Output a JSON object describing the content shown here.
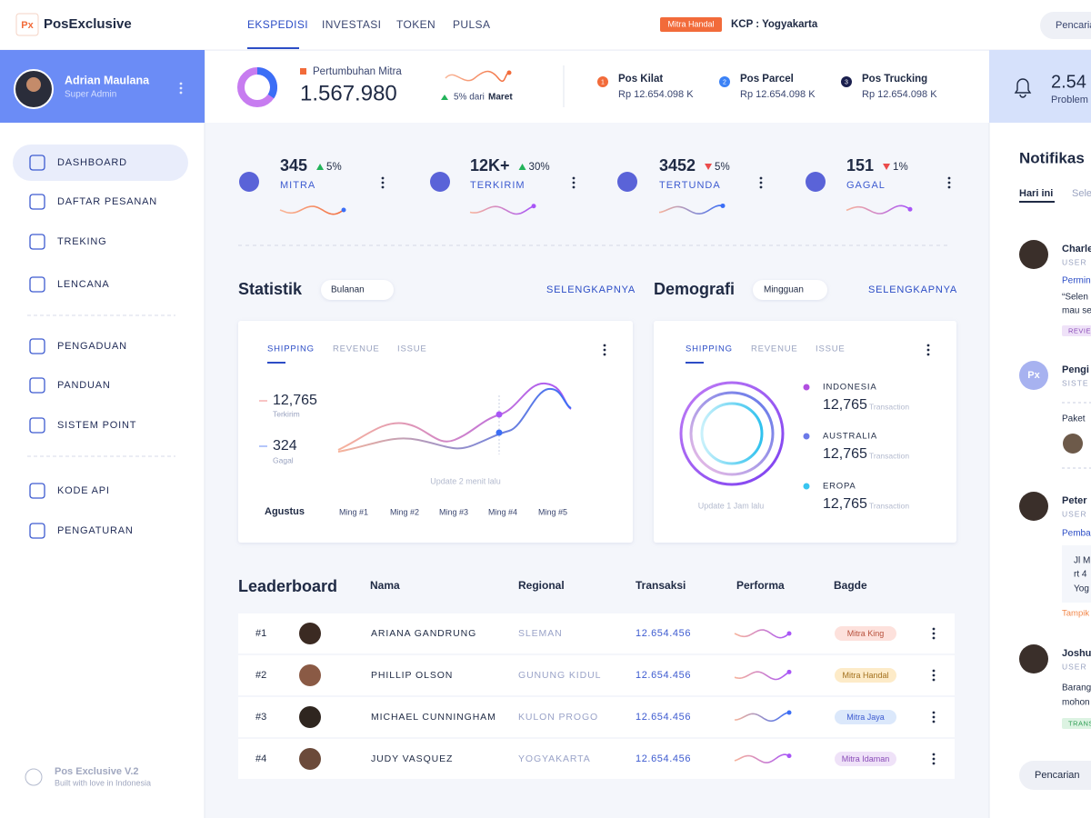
{
  "topbar": {
    "logo": "Px",
    "brand": "PosExclusive",
    "nav": [
      "EKSPEDISI",
      "INVESTASI",
      "TOKEN",
      "PULSA"
    ],
    "badge": "Mitra Handal",
    "location": "KCP : Yogyakarta",
    "search": "Pencaria"
  },
  "profile": {
    "name": "Adrian Maulana",
    "role": "Super Admin"
  },
  "menu": [
    [
      "DASHBOARD",
      "DAFTAR PESANAN",
      "TREKING",
      "LENCANA"
    ],
    [
      "PENGADUAN",
      "PANDUAN",
      "SISTEM POINT"
    ],
    [
      "KODE API",
      "PENGATURAN"
    ]
  ],
  "footer": {
    "title": "Pos Exclusive V.2",
    "subtitle": "Built with love in Indonesia"
  },
  "summary": {
    "label": "Pertumbuhan Mitra",
    "value": "1.567.980",
    "change": "5% dari",
    "period": "Maret",
    "services": [
      {
        "index": "1",
        "name": "Pos Kilat",
        "amount": "Rp 12.654.098 K"
      },
      {
        "index": "2",
        "name": "Pos Parcel",
        "amount": "Rp 12.654.098 K"
      },
      {
        "index": "3",
        "name": "Pos Trucking",
        "amount": "Rp 12.654.098 K"
      }
    ]
  },
  "alert": {
    "value": "2.54",
    "label": "Problem"
  },
  "stats": [
    {
      "value": "345",
      "change": "5%",
      "label": "MITRA",
      "trend": "up"
    },
    {
      "value": "12K+",
      "change": "30%",
      "label": "TERKIRIM",
      "trend": "up"
    },
    {
      "value": "3452",
      "change": "5%",
      "label": "TERTUNDA",
      "trend": "down"
    },
    {
      "value": "151",
      "change": "1%",
      "label": "GAGAL",
      "trend": "down"
    }
  ],
  "statistik": {
    "title": "Statistik",
    "filter": "Bulanan",
    "more": "SELENGKAPNYA",
    "tabs": [
      "SHIPPING",
      "REVENUE",
      "ISSUE"
    ],
    "legend": [
      {
        "value": "12,765",
        "label": "Terkirim"
      },
      {
        "value": "324",
        "label": "Gagal"
      }
    ],
    "note": "Update 2 menit lalu",
    "month": "Agustus",
    "weeks": [
      "Ming #1",
      "Ming #2",
      "Ming #3",
      "Ming #4",
      "Ming #5"
    ]
  },
  "demografi": {
    "title": "Demografi",
    "filter": "Mingguan",
    "more": "SELENGKAPNYA",
    "tabs": [
      "SHIPPING",
      "REVENUE",
      "ISSUE"
    ],
    "note": "Update 1 Jam lalu",
    "regions": [
      {
        "name": "INDONESIA",
        "value": "12,765",
        "unit": "Transaction"
      },
      {
        "name": "AUSTRALIA",
        "value": "12,765",
        "unit": "Transaction"
      },
      {
        "name": "EROPA",
        "value": "12,765",
        "unit": "Transaction"
      }
    ]
  },
  "leaderboard": {
    "title": "Leaderboard",
    "columns": [
      "Nama",
      "Regional",
      "Transaksi",
      "Performa",
      "Bagde"
    ],
    "rows": [
      {
        "rank": "#1",
        "name": "ARIANA GANDRUNG",
        "region": "SLEMAN",
        "amount": "12.654.456",
        "badge": "Mitra King"
      },
      {
        "rank": "#2",
        "name": "PHILLIP OLSON",
        "region": "GUNUNG KIDUL",
        "amount": "12.654.456",
        "badge": "Mitra Handal"
      },
      {
        "rank": "#3",
        "name": "MICHAEL CUNNINGHAM",
        "region": "KULON PROGO",
        "amount": "12.654.456",
        "badge": "Mitra Jaya"
      },
      {
        "rank": "#4",
        "name": "JUDY VASQUEZ",
        "region": "YOGYAKARTA",
        "amount": "12.654.456",
        "badge": "Mitra Idaman"
      }
    ]
  },
  "notifications": {
    "title": "Notifikas",
    "tabs": [
      "Hari ini",
      "Sele"
    ],
    "search": "Pencarian",
    "items": [
      {
        "name": "Charle",
        "role": "USER",
        "action": "Permin",
        "text": [
          "“Selen",
          "mau se"
        ],
        "tag": "REVIE"
      },
      {
        "avatar": "Px",
        "name": "Pengi",
        "role": "SISTE",
        "text": [
          "Paket"
        ]
      },
      {
        "name": "Peter",
        "role": "USER",
        "action": "Pemba",
        "text": [
          "Jl M",
          "rt 4",
          "Yog"
        ],
        "link": "Tampik"
      },
      {
        "name": "Joshu",
        "role": "USER",
        "text": [
          "Barang",
          "mohon"
        ],
        "tag": "TRANS"
      }
    ]
  }
}
